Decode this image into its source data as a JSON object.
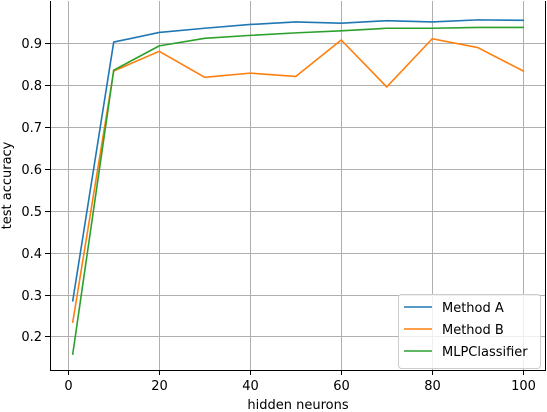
{
  "chart_data": {
    "type": "line",
    "xlabel": "hidden neurons",
    "ylabel": "test accuracy",
    "xlim": [
      -4,
      105
    ],
    "ylim": [
      0.12,
      1.0
    ],
    "xticks": [
      0,
      20,
      40,
      60,
      80,
      100
    ],
    "yticks": [
      0.2,
      0.3,
      0.4,
      0.5,
      0.6,
      0.7,
      0.8,
      0.9
    ],
    "grid": true,
    "legend_position": "bottom-right",
    "x": [
      1,
      10,
      20,
      30,
      40,
      50,
      60,
      70,
      80,
      90,
      100
    ],
    "series": [
      {
        "name": "Method A",
        "color": "#1f77b4",
        "values": [
          0.285,
          0.902,
          0.925,
          0.935,
          0.944,
          0.95,
          0.947,
          0.953,
          0.95,
          0.955,
          0.954
        ]
      },
      {
        "name": "Method B",
        "color": "#ff7f0e",
        "values": [
          0.234,
          0.833,
          0.88,
          0.818,
          0.828,
          0.82,
          0.907,
          0.795,
          0.91,
          0.889,
          0.833
        ]
      },
      {
        "name": "MLPClassifier",
        "color": "#2ca02c",
        "values": [
          0.158,
          0.835,
          0.893,
          0.911,
          0.918,
          0.924,
          0.929,
          0.935,
          0.935,
          0.937,
          0.937
        ]
      }
    ]
  }
}
